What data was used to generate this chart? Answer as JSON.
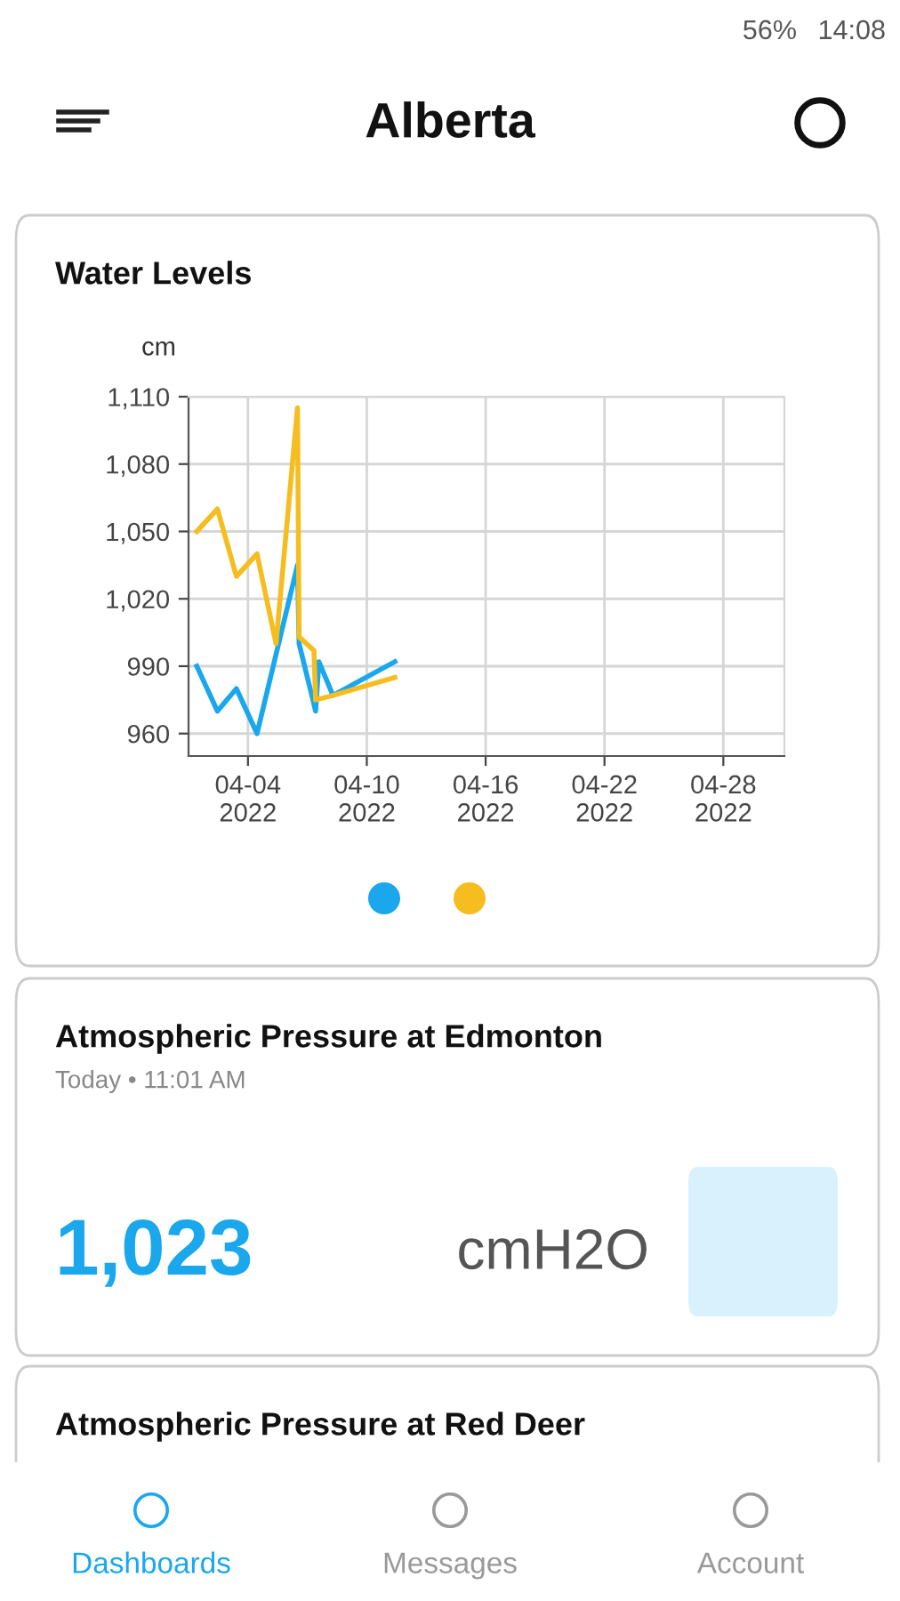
{
  "chart_data": [
    {
      "type": "other",
      "title": "Alberta",
      "annotations": [
        "56%",
        "14:08"
      ]
    },
    {
      "type": "line",
      "title": "Water Levels",
      "ylabel": "cm",
      "xlim": [
        "2022-04-01T00:00",
        "2022-05-01T02:00"
      ],
      "ylim": [
        950,
        1110
      ],
      "xticks": [
        {
          "value": "2022-04-04",
          "label": "04-04\n2022"
        },
        {
          "value": "2022-04-10",
          "label": "04-10\n2022"
        },
        {
          "value": "2022-04-16",
          "label": "04-16\n2022"
        },
        {
          "value": "2022-04-22",
          "label": "04-22\n2022"
        },
        {
          "value": "2022-04-28",
          "label": "04-28\n2022"
        }
      ],
      "yticks": [
        {
          "value": 960,
          "label": "960"
        },
        {
          "value": 990,
          "label": "990"
        },
        {
          "value": 1020,
          "label": "1,020"
        },
        {
          "value": 1050,
          "label": "1,050"
        },
        {
          "value": 1080,
          "label": "1,080"
        },
        {
          "value": 1110,
          "label": "1,110"
        }
      ],
      "grid": true,
      "marker": "none",
      "line_style": "solid",
      "series": [
        {
          "color": "#1aa7ec",
          "x": [
            "2022-04-01T10:00",
            "2022-04-02T11:00",
            "2022-04-03T10:00",
            "2022-04-04T11:00",
            "2022-04-06T12:00",
            "2022-04-06T14:00",
            "2022-04-07T10:00",
            "2022-04-07T14:00",
            "2022-04-08T07:00",
            "2022-04-11T10:00"
          ],
          "values": [
            990,
            970,
            980,
            960,
            1035,
            1000,
            970,
            992,
            977,
            992
          ]
        },
        {
          "color": "#f5bd1f",
          "x": [
            "2022-04-01T10:00",
            "2022-04-02T11:00",
            "2022-04-03T10:00",
            "2022-04-04T11:00",
            "2022-04-05T10:00",
            "2022-04-06T12:00",
            "2022-04-06T14:00",
            "2022-04-07T08:00",
            "2022-04-07T10:00",
            "2022-04-08T07:00",
            "2022-04-11T10:00"
          ],
          "values": [
            1050,
            1060,
            1030,
            1040,
            1000,
            1105,
            1003,
            997,
            975,
            977,
            985
          ]
        }
      ]
    },
    {
      "type": "other",
      "title": "Atmospheric Pressure at Edmonton",
      "subtitle": "Today • 11:01 AM",
      "annotations": [
        "1,023",
        "cmH2O"
      ]
    },
    {
      "type": "other",
      "title": "Atmospheric Pressure at Red Deer",
      "annotations": [
        "Dashboards",
        "Messages",
        "Account"
      ]
    }
  ]
}
